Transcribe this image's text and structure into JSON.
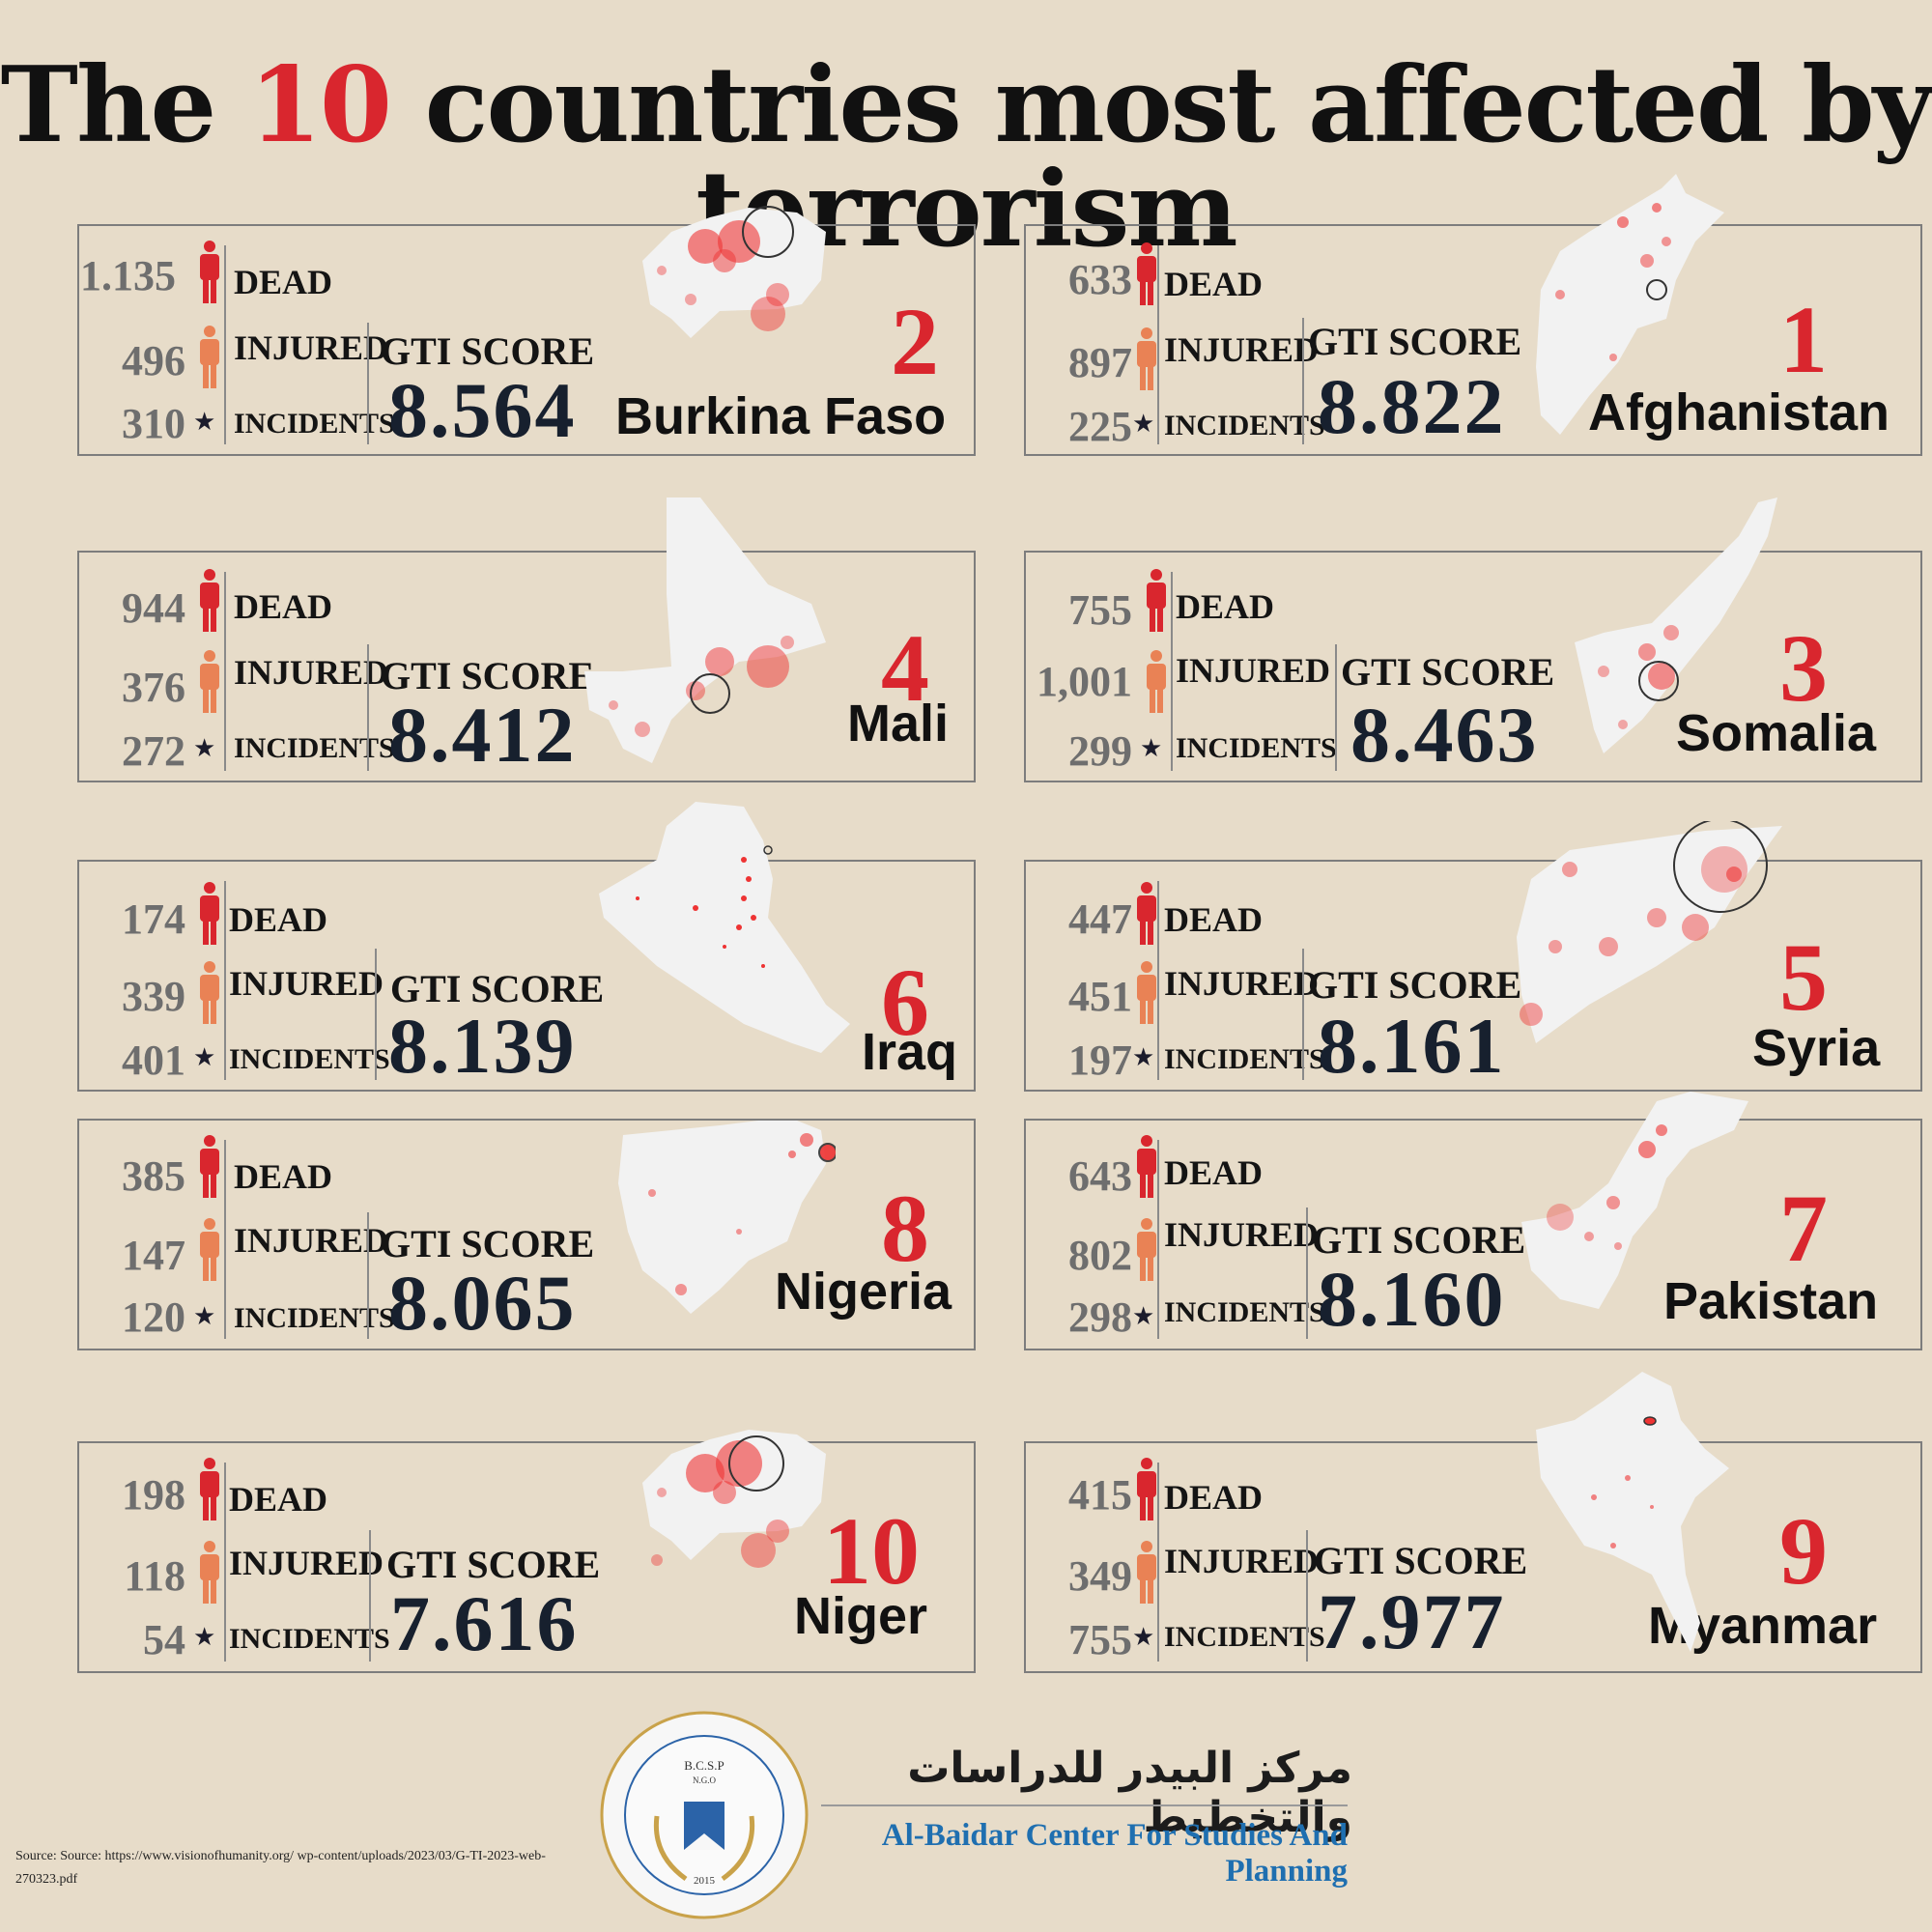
{
  "title": {
    "prefix": "The ",
    "number": "10",
    "suffix": " countries most affected by terrorism"
  },
  "labels": {
    "dead": "DEAD",
    "injured": "INJURED",
    "incidents": "INCIDENTS",
    "gti": "GTI SCORE"
  },
  "colors": {
    "accent": "#d9262e",
    "dead_icon": "#d9262e",
    "injured_icon": "#e98255",
    "background": "#e7dcc9",
    "score": "#17202e"
  },
  "icons": {
    "dead": "person-icon",
    "injured": "person-icon",
    "incidents": "star-icon"
  },
  "countries": [
    {
      "rank": "2",
      "name": "Burkina Faso",
      "dead": "1.135",
      "injured": "496",
      "incidents": "310",
      "gti": "8.564"
    },
    {
      "rank": "1",
      "name": "Afghanistan",
      "dead": "633",
      "injured": "897",
      "incidents": "225",
      "gti": "8.822"
    },
    {
      "rank": "4",
      "name": "Mali",
      "dead": "944",
      "injured": "376",
      "incidents": "272",
      "gti": "8.412"
    },
    {
      "rank": "3",
      "name": "Somalia",
      "dead": "755",
      "injured": "1,001",
      "incidents": "299",
      "gti": "8.463"
    },
    {
      "rank": "6",
      "name": "Iraq",
      "dead": "174",
      "injured": "339",
      "incidents": "401",
      "gti": "8.139"
    },
    {
      "rank": "5",
      "name": "Syria",
      "dead": "447",
      "injured": "451",
      "incidents": "197",
      "gti": "8.161"
    },
    {
      "rank": "8",
      "name": "Nigeria",
      "dead": "385",
      "injured": "147",
      "incidents": "120",
      "gti": "8.065"
    },
    {
      "rank": "7",
      "name": "Pakistan",
      "dead": "643",
      "injured": "802",
      "incidents": "298",
      "gti": "8.160"
    },
    {
      "rank": "10",
      "name": "Niger",
      "dead": "198",
      "injured": "118",
      "incidents": "54",
      "gti": "7.616"
    },
    {
      "rank": "9",
      "name": "Myanmar",
      "dead": "415",
      "injured": "349",
      "incidents": "755",
      "gti": "7.977"
    }
  ],
  "footer": {
    "center_arabic": "مركز البيدر للدراسات والتخطيط",
    "center_english": "Al-Baidar Center For Studies And Planning",
    "logo_abbrev": "B.C.S.P",
    "logo_ngo": "N.G.O",
    "logo_year": "2015",
    "source": "Source:  Source:  https://www.visionofhumanity.org/  wp-content/uploads/2023/03/G-TI-2023-web-270323.pdf"
  }
}
